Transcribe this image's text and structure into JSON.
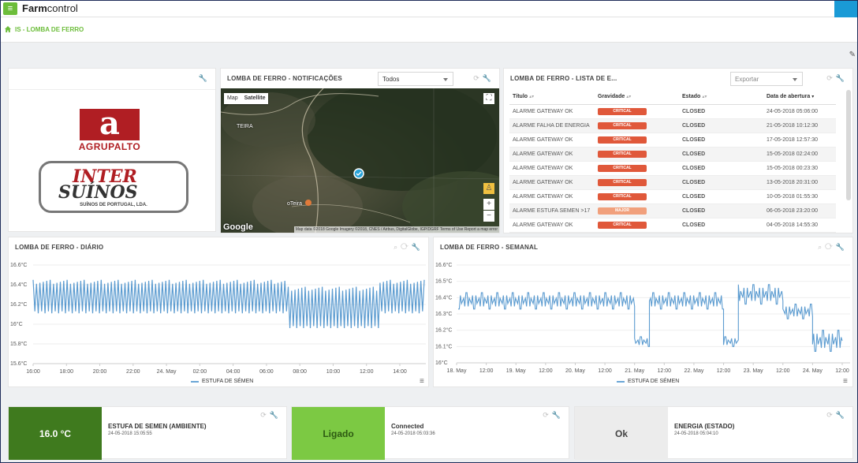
{
  "app": {
    "brand_bold": "Farm",
    "brand_light": "control"
  },
  "breadcrumb": "IS - LOMBA DE FERRO",
  "map_panel": {
    "title": "LOMBA DE FERRO - NOTIFICAÇÕES",
    "filter": "Todos",
    "map_btn": "Map",
    "satellite_btn": "Satellite",
    "place_label_1": "TEIRA",
    "place_label_2": "oTeira",
    "google": "Google",
    "attribution": "Map data ©2018 Google Imagery ©2018, CNES / Airbus, DigitalGlobe, IGP/DGRF   Terms of Use   Report a map error"
  },
  "alarms_panel": {
    "title": "LOMBA DE FERRO - LISTA DE E...",
    "export_label": "Exportar",
    "columns": [
      "Título",
      "Gravidade",
      "Estado",
      "Data de abertura"
    ],
    "rows": [
      {
        "titulo": "ALARME GATEWAY OK",
        "gravidade": "CRITICAL",
        "estado": "CLOSED",
        "data": "24-05-2018 05:06:00"
      },
      {
        "titulo": "ALARME FALHA DE ENERGIA",
        "gravidade": "CRITICAL",
        "estado": "CLOSED",
        "data": "21-05-2018 10:12:30"
      },
      {
        "titulo": "ALARME GATEWAY OK",
        "gravidade": "CRITICAL",
        "estado": "CLOSED",
        "data": "17-05-2018 12:57:30"
      },
      {
        "titulo": "ALARME GATEWAY OK",
        "gravidade": "CRITICAL",
        "estado": "CLOSED",
        "data": "15-05-2018 02:24:00"
      },
      {
        "titulo": "ALARME GATEWAY OK",
        "gravidade": "CRITICAL",
        "estado": "CLOSED",
        "data": "15-05-2018 00:23:30"
      },
      {
        "titulo": "ALARME GATEWAY OK",
        "gravidade": "CRITICAL",
        "estado": "CLOSED",
        "data": "13-05-2018 20:31:00"
      },
      {
        "titulo": "ALARME GATEWAY OK",
        "gravidade": "CRITICAL",
        "estado": "CLOSED",
        "data": "10-05-2018 01:55:30"
      },
      {
        "titulo": "ALARME ESTUFA SEMEN >17",
        "gravidade": "MAJOR",
        "estado": "CLOSED",
        "data": "06-05-2018 23:20:00"
      },
      {
        "titulo": "ALARME GATEWAY OK",
        "gravidade": "CRITICAL",
        "estado": "CLOSED",
        "data": "04-05-2018 14:55:30"
      }
    ]
  },
  "logos": {
    "agrupalto_letter": "a",
    "agrupalto_name": "AGRUPALTO",
    "inter": "INTER",
    "suinos": "SUÍNOS",
    "suinos_tag": "SUÍNOS DE PORTUGAL, LDA."
  },
  "chart_data": [
    {
      "type": "line",
      "title": "LOMBA DE FERRO - DIÁRIO",
      "series": [
        {
          "name": "ESTUFA DE SÉMEN"
        }
      ],
      "x_ticks": [
        "16:00",
        "18:00",
        "20:00",
        "22:00",
        "24. May",
        "02:00",
        "04:00",
        "06:00",
        "08:00",
        "10:00",
        "12:00",
        "14:00"
      ],
      "y_ticks": [
        "15.6°C",
        "15.8°C",
        "16°C",
        "16.2°C",
        "16.4°C",
        "16.6°C"
      ],
      "ylim": [
        15.6,
        16.6
      ],
      "description_values": {
        "oscillation_low": 16.1,
        "oscillation_high": 16.45,
        "late_low": 15.95,
        "late_high": 16.38
      }
    },
    {
      "type": "line",
      "title": "LOMBA DE FERRO - SEMANAL",
      "series": [
        {
          "name": "ESTUFA DE SÉMEN"
        }
      ],
      "x_ticks": [
        "18. May",
        "12:00",
        "19. May",
        "12:00",
        "20. May",
        "12:00",
        "21. May",
        "12:00",
        "22. May",
        "12:00",
        "23. May",
        "12:00",
        "24. May",
        "12:00"
      ],
      "y_ticks": [
        "16°C",
        "16.1°C",
        "16.2°C",
        "16.3°C",
        "16.4°C",
        "16.5°C",
        "16.6°C"
      ],
      "ylim": [
        16.0,
        16.6
      ],
      "segments": [
        {
          "from": "17. May 18:00",
          "to": "21. May 00:00",
          "low": 16.33,
          "high": 16.43
        },
        {
          "from": "21. May 00:00",
          "to": "21. May 06:00",
          "low": 16.1,
          "high": 16.16
        },
        {
          "from": "21. May 06:00",
          "to": "22. May 12:00",
          "low": 16.33,
          "high": 16.43
        },
        {
          "from": "22. May 12:00",
          "to": "22. May 18:00",
          "low": 16.1,
          "high": 16.16
        },
        {
          "from": "22. May 18:00",
          "to": "23. May 12:00",
          "low": 16.36,
          "high": 16.48
        },
        {
          "from": "23. May 12:00",
          "to": "24. May 00:00",
          "low": 16.27,
          "high": 16.36
        },
        {
          "from": "24. May 00:00",
          "to": "24. May 12:00",
          "low": 16.07,
          "high": 16.2
        }
      ]
    }
  ],
  "tiles": [
    {
      "value": "16.0 °C",
      "title": "ESTUFA DE SEMEN (AMBIENTE)",
      "timestamp": "24-05-2018 15:05:55",
      "color": "#3f7a1e",
      "text_color": "#ffffff"
    },
    {
      "value": "Ligado",
      "title": "Connected",
      "timestamp": "24-05-2018 05:03:36",
      "color": "#7cc943",
      "text_color": "#2d5a12"
    },
    {
      "value": "Ok",
      "title": "ENERGIA (ESTADO)",
      "timestamp": "24-05-2018 05:04:10",
      "color": "#ececec",
      "text_color": "#444444"
    }
  ]
}
